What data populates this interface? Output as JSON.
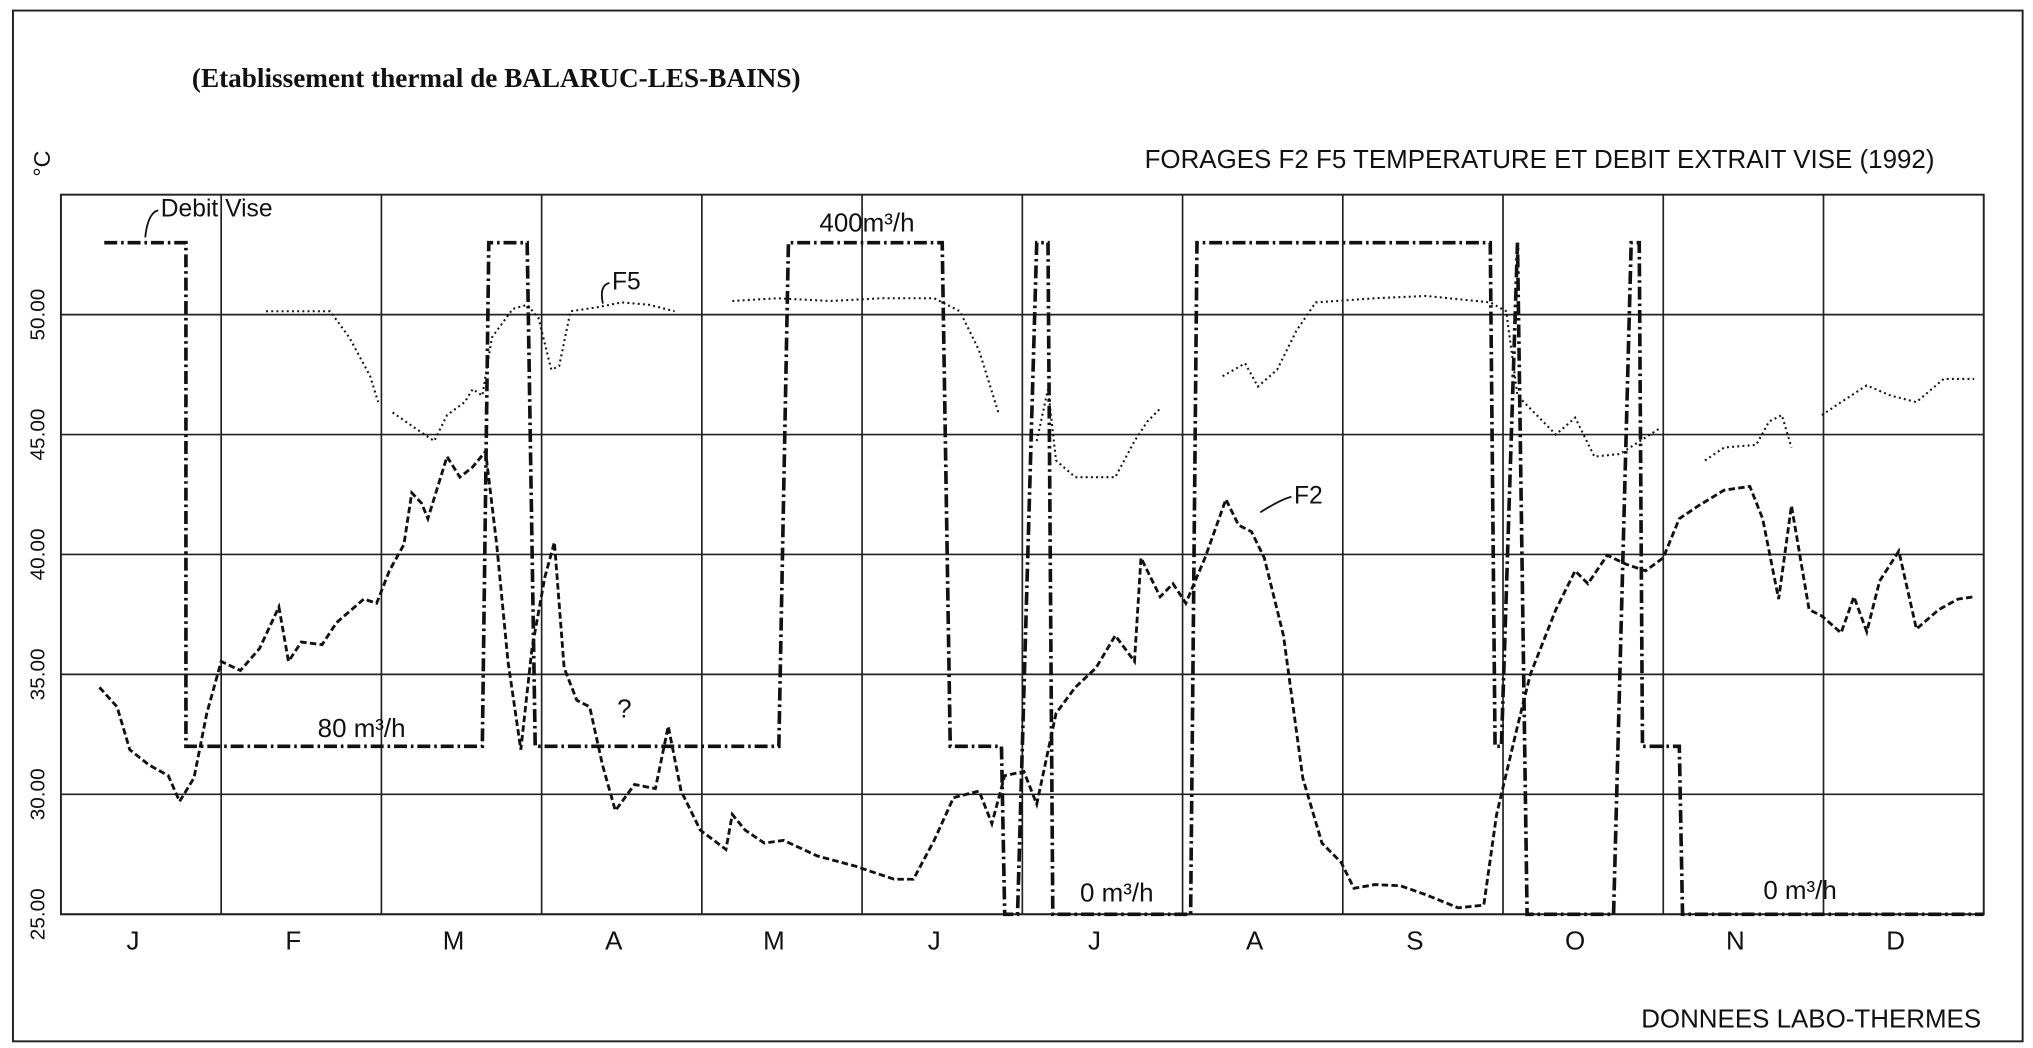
{
  "chart_data": {
    "type": "line",
    "subtitle": "(Etablissement thermal de BALARUC-LES-BAINS)",
    "title": "FORAGES F2 F5 TEMPERATURE ET DEBIT EXTRAIT VISE (1992)",
    "y_label": "°C",
    "source": "DONNEES LABO-THERMES",
    "categories": [
      "J",
      "F",
      "M",
      "A",
      "M",
      "J",
      "J",
      "A",
      "S",
      "O",
      "N",
      "D"
    ],
    "xlim": [
      0,
      12
    ],
    "ylim": [
      25,
      55
    ],
    "yticks": [
      {
        "value": 25,
        "label": "25.00"
      },
      {
        "value": 30,
        "label": "30.00"
      },
      {
        "value": 35,
        "label": "35.00"
      },
      {
        "value": 40,
        "label": "40.00"
      },
      {
        "value": 45,
        "label": "45.00"
      },
      {
        "value": 50,
        "label": "50.00"
      }
    ],
    "grid": true,
    "annotations": [
      "80 m³/h",
      "400m³/h",
      "0 m³/h",
      "0 m³/h",
      "?"
    ],
    "series": [
      {
        "name": "F2",
        "color": "#111",
        "style": "dashed",
        "x": [
          0.24,
          0.35,
          0.43,
          0.55,
          0.67,
          0.74,
          0.83,
          0.91,
          1.0,
          1.12,
          1.24,
          1.36,
          1.42,
          1.5,
          1.63,
          1.72,
          1.89,
          1.97,
          2.05,
          2.14,
          2.19,
          2.25,
          2.29,
          2.41,
          2.49,
          2.57,
          2.65,
          2.72,
          2.79,
          2.87,
          2.94,
          3.02,
          3.08,
          3.14,
          3.22,
          3.3,
          3.38,
          3.46,
          3.58,
          3.71,
          3.79,
          3.87,
          3.99,
          4.15,
          4.19,
          4.27,
          4.39,
          4.51,
          4.72,
          4.96,
          5.2,
          5.32,
          5.45,
          5.57,
          5.73,
          5.81,
          5.89,
          6.01,
          6.09,
          6.21,
          6.33,
          6.46,
          6.58,
          6.7,
          6.74,
          6.86,
          6.94,
          7.02,
          7.14,
          7.27,
          7.35,
          7.43,
          7.51,
          7.63,
          7.75,
          7.87,
          7.99,
          8.07,
          8.2,
          8.36,
          8.52,
          8.72,
          8.88,
          8.96,
          9.09,
          9.17,
          9.33,
          9.45,
          9.53,
          9.65,
          9.77,
          9.89,
          10.0,
          10.1,
          10.22,
          10.38,
          10.54,
          10.62,
          10.72,
          10.8,
          10.91,
          10.99,
          11.11,
          11.19,
          11.27,
          11.35,
          11.47,
          11.58,
          11.72,
          11.84,
          11.94
        ],
        "values": [
          34.46,
          33.65,
          31.86,
          31.22,
          30.78,
          29.7,
          30.68,
          33.38,
          35.54,
          35.16,
          36.08,
          37.81,
          35.54,
          36.35,
          36.24,
          37.16,
          38.14,
          37.97,
          39.32,
          40.41,
          42.57,
          42.14,
          41.49,
          44.08,
          43.22,
          43.65,
          44.3,
          40.41,
          35.54,
          31.86,
          36.08,
          39.05,
          40.51,
          35.27,
          33.92,
          33.65,
          31.22,
          29.32,
          30.41,
          30.24,
          32.84,
          30.14,
          28.51,
          27.7,
          29.16,
          28.51,
          27.97,
          28.08,
          27.43,
          27.0,
          26.46,
          26.46,
          28.08,
          29.86,
          30.14,
          28.78,
          30.78,
          30.95,
          29.59,
          33.38,
          34.46,
          35.27,
          36.62,
          35.54,
          39.86,
          38.24,
          38.78,
          37.97,
          39.86,
          42.3,
          41.22,
          40.95,
          39.86,
          36.62,
          30.68,
          27.97,
          27.16,
          26.08,
          26.24,
          26.19,
          25.81,
          25.27,
          25.38,
          29.16,
          32.84,
          35.0,
          37.7,
          39.32,
          38.78,
          39.97,
          39.59,
          39.32,
          39.86,
          41.49,
          42.03,
          42.68,
          42.84,
          41.49,
          38.14,
          42.03,
          37.7,
          37.43,
          36.73,
          38.24,
          36.78,
          38.89,
          40.14,
          36.89,
          37.7,
          38.14,
          38.24
        ]
      },
      {
        "name": "F5",
        "color": "#111",
        "style": "dotted",
        "x": [
          1.28,
          1.68,
          1.8,
          1.93,
          1.98,
          null,
          2.07,
          2.21,
          2.33,
          2.41,
          2.52,
          2.57,
          2.63,
          2.69,
          2.82,
          2.91,
          2.98,
          3.06,
          3.11,
          3.18,
          3.34,
          3.5,
          3.67,
          3.83,
          null,
          4.19,
          4.47,
          4.8,
          5.12,
          5.45,
          5.61,
          5.73,
          5.85,
          null,
          6.09,
          6.16,
          6.21,
          6.33,
          6.58,
          6.7,
          6.78,
          6.86,
          null,
          7.25,
          7.39,
          7.47,
          7.59,
          7.71,
          7.83,
          8.2,
          8.52,
          8.92,
          9.02,
          9.09,
          9.21,
          9.33,
          9.45,
          9.57,
          9.73,
          9.98,
          null,
          10.26,
          10.38,
          10.58,
          10.66,
          10.74,
          10.8,
          null,
          10.99,
          11.11,
          11.27,
          11.42,
          11.58,
          11.75,
          11.94
        ],
        "values": [
          50.14,
          50.14,
          49.05,
          47.43,
          46.35,
          null,
          45.92,
          45.27,
          44.73,
          45.81,
          46.35,
          46.89,
          46.62,
          49.05,
          50.24,
          50.41,
          49.86,
          47.7,
          47.86,
          50.14,
          50.3,
          50.51,
          50.41,
          50.14,
          null,
          50.57,
          50.68,
          50.57,
          50.68,
          50.68,
          50.14,
          48.51,
          45.92,
          null,
          44.73,
          46.89,
          43.92,
          43.22,
          43.22,
          44.73,
          45.54,
          46.08,
          null,
          47.43,
          47.97,
          47.0,
          47.7,
          49.32,
          50.51,
          50.68,
          50.78,
          50.51,
          50.14,
          46.62,
          45.81,
          45.0,
          45.7,
          44.08,
          44.19,
          45.27,
          null,
          43.92,
          44.46,
          44.57,
          45.54,
          45.81,
          44.46,
          null,
          45.81,
          46.35,
          47.05,
          46.62,
          46.35,
          47.32,
          47.32
        ]
      },
      {
        "name": "Debit Vise",
        "color": "#111",
        "style": "dashdot",
        "x": [
          0.27,
          0.78,
          0.78,
          2.63,
          2.67,
          2.91,
          2.96,
          4.48,
          4.54,
          5.5,
          5.55,
          5.87,
          5.89,
          5.97,
          6.09,
          6.16,
          6.19,
          7.05,
          7.09,
          8.92,
          8.95,
          8.99,
          9.09,
          9.15,
          9.69,
          9.8,
          9.85,
          9.87,
          10.1,
          10.12,
          12.0
        ],
        "values": [
          53,
          53,
          32,
          32,
          53,
          53,
          32,
          32,
          53,
          53,
          32,
          32,
          25,
          25,
          53,
          53,
          25,
          25,
          53,
          53,
          32,
          32,
          53,
          25,
          25,
          53,
          53,
          32,
          32,
          25,
          25
        ]
      }
    ]
  }
}
